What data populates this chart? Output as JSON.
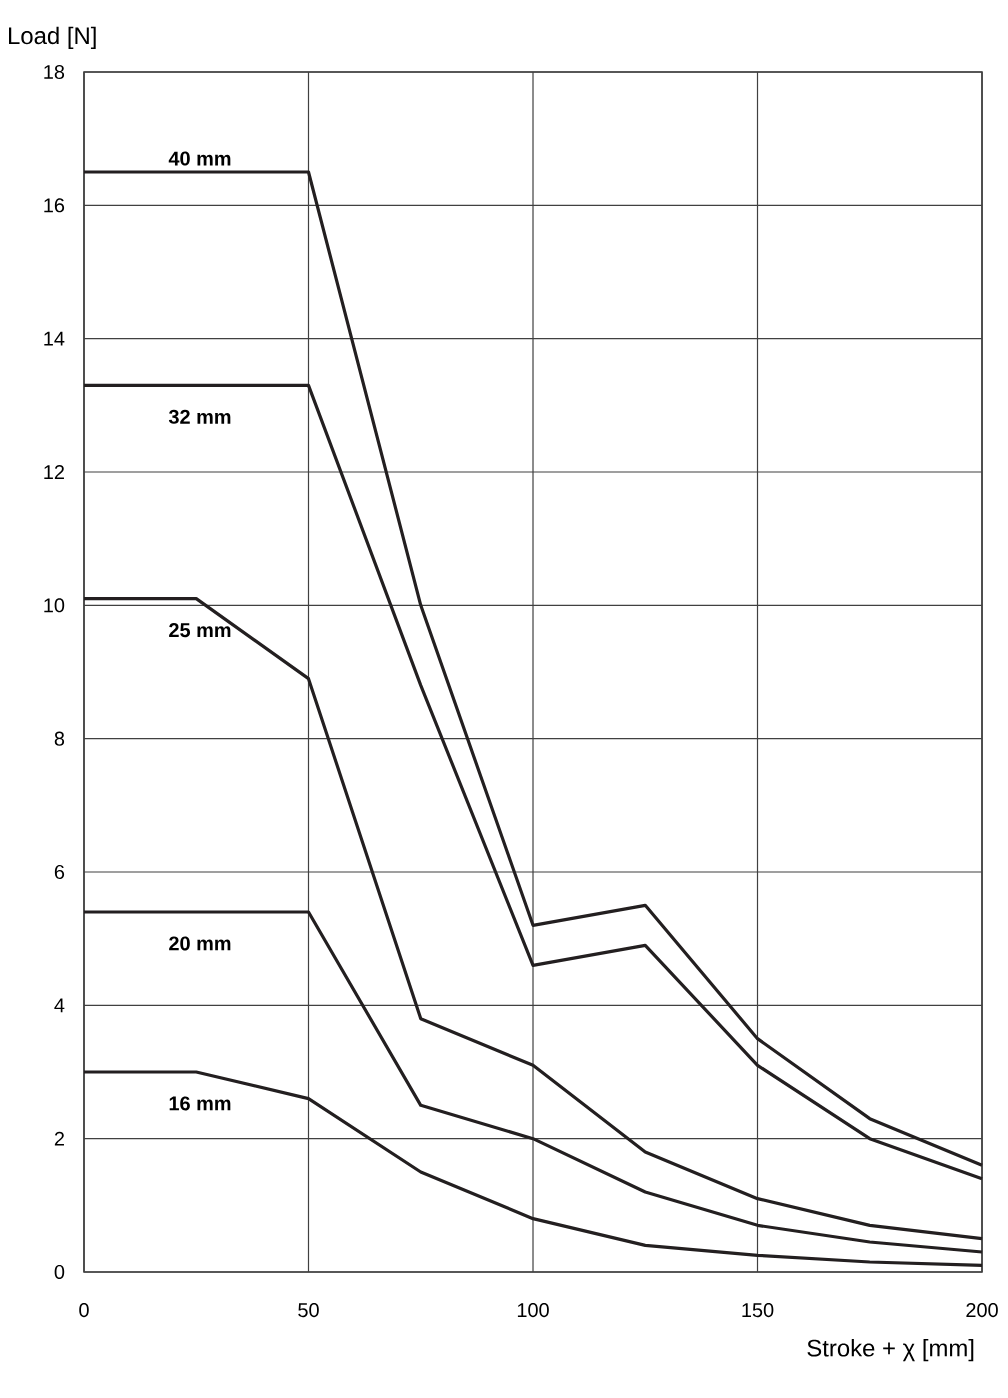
{
  "chart_data": {
    "type": "line",
    "xlabel": "Stroke + χ [mm]",
    "ylabel": "Load [N]",
    "xlim": [
      0,
      200
    ],
    "ylim": [
      0,
      18
    ],
    "xticks": [
      0,
      50,
      100,
      150,
      200
    ],
    "yticks": [
      0,
      2,
      4,
      6,
      8,
      10,
      12,
      14,
      16,
      18
    ],
    "grid": true,
    "series": [
      {
        "name": "40 mm",
        "color": "#231f20",
        "x": [
          0,
          50,
          75,
          100,
          125,
          150,
          175,
          200
        ],
        "values": [
          16.5,
          16.5,
          10.0,
          5.2,
          5.5,
          3.5,
          2.3,
          1.6
        ]
      },
      {
        "name": "32 mm",
        "color": "#231f20",
        "x": [
          0,
          50,
          75,
          100,
          125,
          150,
          175,
          200
        ],
        "values": [
          13.3,
          13.3,
          8.8,
          4.6,
          4.9,
          3.1,
          2.0,
          1.4
        ]
      },
      {
        "name": "25 mm",
        "color": "#231f20",
        "x": [
          0,
          25,
          50,
          75,
          100,
          125,
          150,
          175,
          200
        ],
        "values": [
          10.1,
          10.1,
          8.9,
          3.8,
          3.1,
          1.8,
          1.1,
          0.7,
          0.5
        ]
      },
      {
        "name": "20 mm",
        "color": "#231f20",
        "x": [
          0,
          50,
          75,
          100,
          125,
          150,
          175,
          200
        ],
        "values": [
          5.4,
          5.4,
          2.5,
          2.0,
          1.2,
          0.7,
          0.45,
          0.3
        ]
      },
      {
        "name": "16 mm",
        "color": "#231f20",
        "x": [
          0,
          25,
          50,
          75,
          100,
          125,
          150,
          175,
          200
        ],
        "values": [
          3.0,
          3.0,
          2.6,
          1.5,
          0.8,
          0.4,
          0.25,
          0.15,
          0.1
        ]
      }
    ]
  }
}
